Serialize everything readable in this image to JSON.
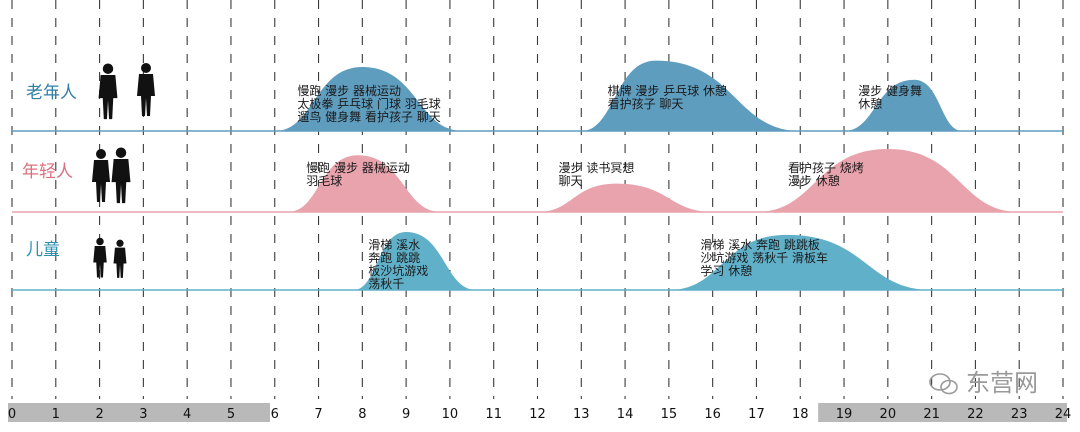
{
  "chart_data": {
    "type": "area",
    "x_ticks": [
      "0",
      "1",
      "2",
      "3",
      "4",
      "5",
      "6",
      "7",
      "8",
      "9",
      "10",
      "11",
      "12",
      "13",
      "14",
      "15",
      "16",
      "17",
      "18",
      "19",
      "20",
      "21",
      "22",
      "23",
      "24"
    ],
    "xlim": [
      0,
      24
    ],
    "grid": true,
    "series": [
      {
        "name": "老年人",
        "color": "#5f9dbf",
        "label_color": "#2f7fa6",
        "peaks": [
          {
            "x_start": 6.0,
            "x_end": 10.3,
            "peak_x": 8.0,
            "peak_value": 1.0,
            "activities": [
              "慢跑  漫步  器械运动",
              "太极拳  乒乓球  门球  羽毛球",
              "遛鸟  健身舞  看护孩子  聊天"
            ]
          },
          {
            "x_start": 13.0,
            "x_end": 18.0,
            "peak_x": 14.7,
            "peak_value": 1.1,
            "activities": [
              "棋牌  漫步  乒乓球  休憩",
              "看护孩子  聊天"
            ]
          },
          {
            "x_start": 19.0,
            "x_end": 21.7,
            "peak_x": 20.6,
            "peak_value": 0.8,
            "activities": [
              "漫步  健身舞",
              "休憩"
            ]
          }
        ]
      },
      {
        "name": "年轻人",
        "color": "#e8a3ad",
        "label_color": "#d9707f",
        "peaks": [
          {
            "x_start": 6.3,
            "x_end": 9.8,
            "peak_x": 7.9,
            "peak_value": 0.9,
            "activities": [
              "慢跑  漫步  器械运动",
              "羽毛球"
            ]
          },
          {
            "x_start": 12.0,
            "x_end": 16.0,
            "peak_x": 13.8,
            "peak_value": 0.45,
            "activities": [
              "漫步  读书冥想",
              "聊天"
            ]
          },
          {
            "x_start": 17.0,
            "x_end": 23.0,
            "peak_x": 20.0,
            "peak_value": 1.0,
            "activities": [
              "看护孩子  烧烤",
              "漫步  休憩"
            ]
          }
        ]
      },
      {
        "name": "儿童",
        "color": "#5fb0c8",
        "label_color": "#2f90b0",
        "peaks": [
          {
            "x_start": 7.8,
            "x_end": 10.6,
            "peak_x": 9.0,
            "peak_value": 1.0,
            "activities": [
              "滑梯  溪水",
              "奔跑  跳跳",
              "板沙坑游戏",
              "荡秋千"
            ]
          },
          {
            "x_start": 15.0,
            "x_end": 21.0,
            "peak_x": 17.7,
            "peak_value": 0.95,
            "activities": [
              "滑梯  溪水  奔跑  跳跳板",
              "沙坑游戏  荡秋千  滑板车",
              "学习  休憩"
            ]
          }
        ]
      }
    ]
  },
  "colors": {
    "bar_gray": "#b9b9b9",
    "bar_white": "#ffffff",
    "grid_dash": "#3a3a3a"
  },
  "axis_bar_gray_ranges": [
    [
      0,
      5.8
    ],
    [
      18.5,
      24
    ]
  ],
  "watermark": {
    "text": "东营网"
  }
}
